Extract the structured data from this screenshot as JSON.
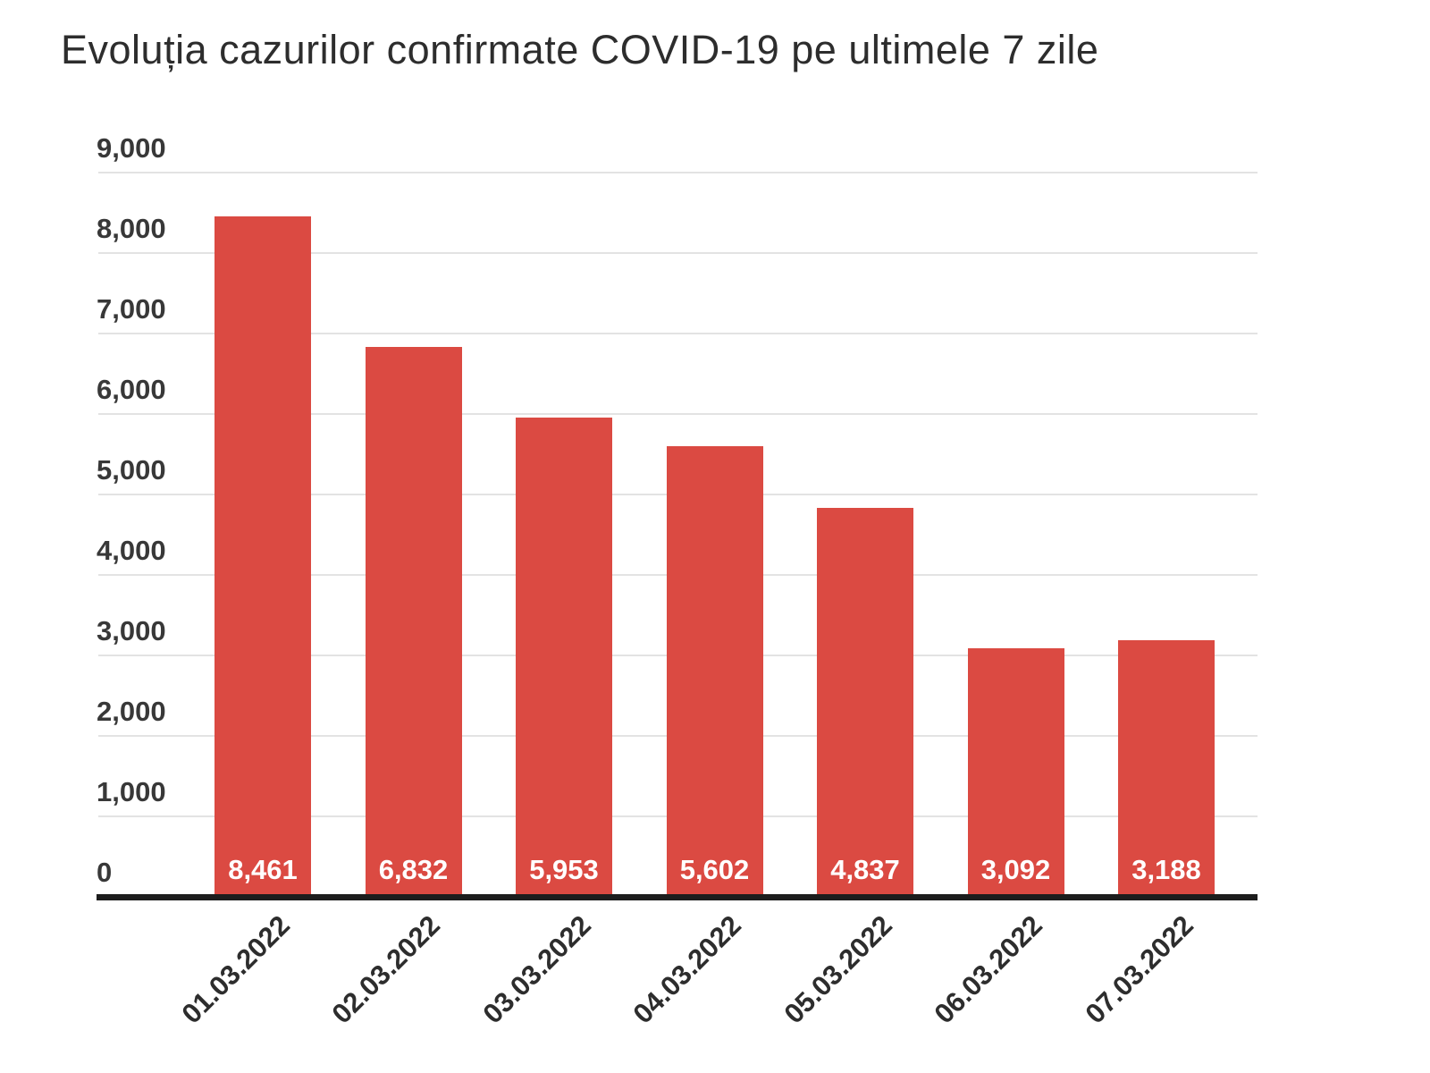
{
  "title": "Evoluția cazurilor confirmate COVID-19 pe ultimele 7 zile",
  "chart_data": {
    "type": "bar",
    "title": "Evoluția cazurilor confirmate COVID-19 pe ultimele 7 zile",
    "categories": [
      "01.03.2022",
      "02.03.2022",
      "03.03.2022",
      "04.03.2022",
      "05.03.2022",
      "06.03.2022",
      "07.03.2022"
    ],
    "values": [
      8461,
      6832,
      5953,
      5602,
      4837,
      3092,
      3188
    ],
    "value_labels": [
      "8,461",
      "6,832",
      "5,953",
      "5,602",
      "4,837",
      "3,092",
      "3,188"
    ],
    "y_ticks": [
      0,
      1000,
      2000,
      3000,
      4000,
      5000,
      6000,
      7000,
      8000,
      9000
    ],
    "y_tick_labels": [
      "0",
      "1,000",
      "2,000",
      "3,000",
      "4,000",
      "5,000",
      "6,000",
      "7,000",
      "8,000",
      "9,000"
    ],
    "ylim": [
      0,
      9000
    ],
    "xlabel": "",
    "ylabel": "",
    "grid": true,
    "legend": "none",
    "x_label_rotation": -45,
    "bar_color": "#db4a42",
    "value_label_color": "#ffffff",
    "gridline_color": "#e3e3e3",
    "axis_line_color": "#1d1d1d",
    "tick_label_color": "#383838",
    "title_color": "#2d2d2d",
    "background_color": "#ffffff"
  }
}
